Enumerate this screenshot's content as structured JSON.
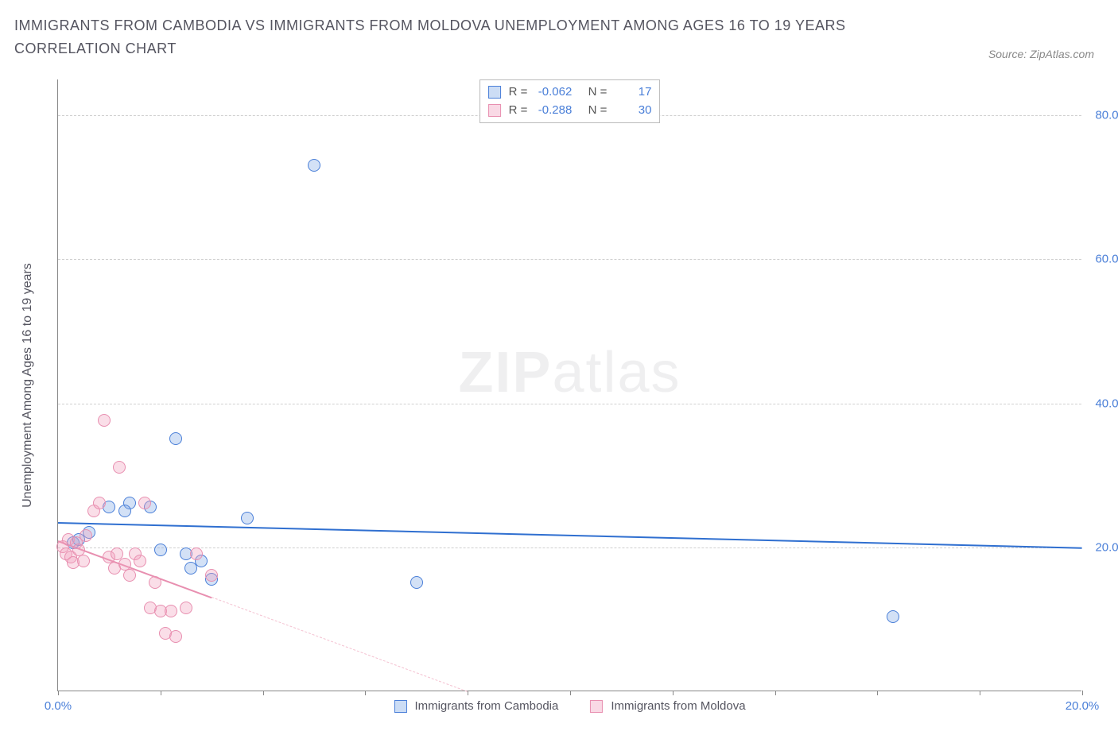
{
  "title": "IMMIGRANTS FROM CAMBODIA VS IMMIGRANTS FROM MOLDOVA UNEMPLOYMENT AMONG AGES 16 TO 19 YEARS CORRELATION CHART",
  "source": "Source: ZipAtlas.com",
  "watermark_bold": "ZIP",
  "watermark_light": "atlas",
  "y_axis_label": "Unemployment Among Ages 16 to 19 years",
  "chart": {
    "type": "scatter",
    "xlim": [
      0,
      20
    ],
    "ylim": [
      0,
      85
    ],
    "x_ticks": [
      0,
      2,
      4,
      6,
      8,
      10,
      12,
      14,
      16,
      18,
      20
    ],
    "x_tick_labels_shown": {
      "0": "0.0%",
      "20": "20.0%"
    },
    "y_ticks": [
      20,
      40,
      60,
      80
    ],
    "y_tick_labels": {
      "20": "20.0%",
      "40": "40.0%",
      "60": "60.0%",
      "80": "80.0%"
    },
    "grid_color": "#d0d0d0",
    "axis_color": "#888888",
    "background_color": "#ffffff",
    "point_radius": 8,
    "series": [
      {
        "id": "s1",
        "name": "Immigrants from Cambodia",
        "color_fill": "rgba(128,170,230,0.35)",
        "color_stroke": "#4a7fd8",
        "R": "-0.062",
        "N": "17",
        "trend": {
          "x1": 0,
          "y1": 23.5,
          "x2": 20,
          "y2": 20.0,
          "solid_until_x": 20
        },
        "points": [
          {
            "x": 0.3,
            "y": 20.5
          },
          {
            "x": 0.4,
            "y": 21.0
          },
          {
            "x": 0.6,
            "y": 22.0
          },
          {
            "x": 1.0,
            "y": 25.5
          },
          {
            "x": 1.4,
            "y": 26.0
          },
          {
            "x": 1.3,
            "y": 25.0
          },
          {
            "x": 2.0,
            "y": 19.5
          },
          {
            "x": 2.5,
            "y": 19.0
          },
          {
            "x": 2.3,
            "y": 35.0
          },
          {
            "x": 2.8,
            "y": 18.0
          },
          {
            "x": 3.0,
            "y": 15.5
          },
          {
            "x": 2.6,
            "y": 17.0
          },
          {
            "x": 3.7,
            "y": 24.0
          },
          {
            "x": 5.0,
            "y": 73.0
          },
          {
            "x": 7.0,
            "y": 15.0
          },
          {
            "x": 16.3,
            "y": 10.3
          },
          {
            "x": 1.8,
            "y": 25.5
          }
        ]
      },
      {
        "id": "s2",
        "name": "Immigrants from Moldova",
        "color_fill": "rgba(240,160,190,0.35)",
        "color_stroke": "#e88fb0",
        "R": "-0.288",
        "N": "30",
        "trend": {
          "x1": 0,
          "y1": 21.0,
          "x2": 8.0,
          "y2": 0.0,
          "solid_until_x": 3.0
        },
        "points": [
          {
            "x": 0.1,
            "y": 20.0
          },
          {
            "x": 0.15,
            "y": 19.0
          },
          {
            "x": 0.2,
            "y": 21.0
          },
          {
            "x": 0.25,
            "y": 18.5
          },
          {
            "x": 0.3,
            "y": 17.8
          },
          {
            "x": 0.35,
            "y": 20.5
          },
          {
            "x": 0.4,
            "y": 19.5
          },
          {
            "x": 0.5,
            "y": 18.0
          },
          {
            "x": 0.55,
            "y": 21.5
          },
          {
            "x": 0.7,
            "y": 25.0
          },
          {
            "x": 0.8,
            "y": 26.0
          },
          {
            "x": 0.9,
            "y": 37.5
          },
          {
            "x": 1.0,
            "y": 18.5
          },
          {
            "x": 1.1,
            "y": 17.0
          },
          {
            "x": 1.15,
            "y": 19.0
          },
          {
            "x": 1.2,
            "y": 31.0
          },
          {
            "x": 1.3,
            "y": 17.5
          },
          {
            "x": 1.4,
            "y": 16.0
          },
          {
            "x": 1.5,
            "y": 19.0
          },
          {
            "x": 1.6,
            "y": 18.0
          },
          {
            "x": 1.7,
            "y": 26.0
          },
          {
            "x": 1.8,
            "y": 11.5
          },
          {
            "x": 1.9,
            "y": 15.0
          },
          {
            "x": 2.0,
            "y": 11.0
          },
          {
            "x": 2.1,
            "y": 8.0
          },
          {
            "x": 2.2,
            "y": 11.0
          },
          {
            "x": 2.3,
            "y": 7.5
          },
          {
            "x": 2.5,
            "y": 11.5
          },
          {
            "x": 2.7,
            "y": 19.0
          },
          {
            "x": 3.0,
            "y": 16.0
          }
        ]
      }
    ]
  },
  "legend_stats_labels": {
    "R": "R =",
    "N": "N ="
  }
}
